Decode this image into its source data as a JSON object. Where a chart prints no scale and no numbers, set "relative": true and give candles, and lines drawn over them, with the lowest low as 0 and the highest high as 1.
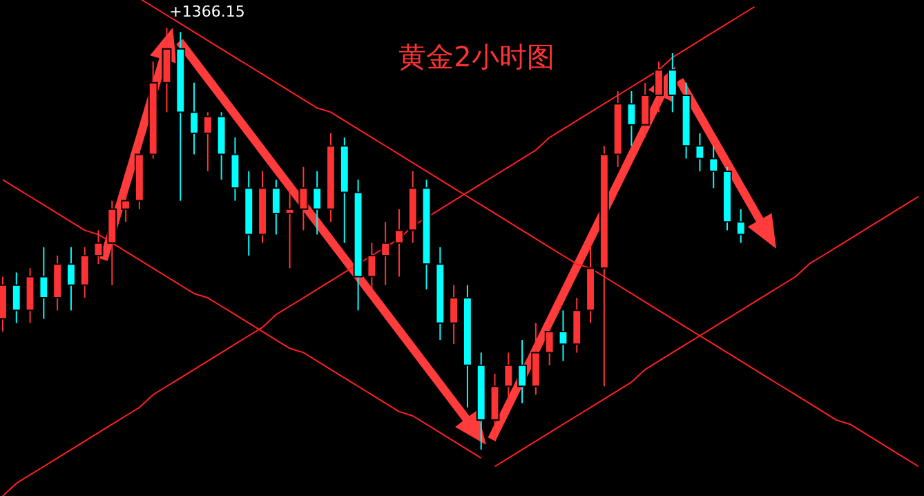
{
  "chart_data": {
    "type": "candlestick",
    "title": "黄金2小时图",
    "relative": true,
    "annotations": [
      "+1366.15"
    ],
    "categories": [
      null,
      null,
      null,
      null,
      null,
      null,
      null,
      null,
      null,
      null,
      null,
      null,
      null,
      null,
      null,
      null,
      null,
      null,
      null,
      null,
      null,
      null,
      null,
      null,
      null,
      null,
      null,
      null,
      null,
      null,
      null,
      null,
      null,
      null,
      null,
      null,
      null,
      null,
      null,
      null,
      null,
      null,
      null,
      null,
      null,
      null,
      null,
      null,
      null,
      null,
      null,
      null,
      null,
      null,
      null,
      null,
      null,
      null,
      null,
      null,
      null,
      null,
      null,
      null,
      null,
      null,
      null,
      null
    ],
    "ohlc": [
      [
        0.31,
        0.41,
        0.28,
        0.39
      ],
      [
        0.39,
        0.42,
        0.3,
        0.33
      ],
      [
        0.33,
        0.43,
        0.3,
        0.41
      ],
      [
        0.41,
        0.48,
        0.31,
        0.36
      ],
      [
        0.36,
        0.46,
        0.33,
        0.44
      ],
      [
        0.44,
        0.48,
        0.33,
        0.39
      ],
      [
        0.39,
        0.48,
        0.36,
        0.46
      ],
      [
        0.46,
        0.52,
        0.44,
        0.49
      ],
      [
        0.49,
        0.59,
        0.39,
        0.57
      ],
      [
        0.57,
        0.62,
        0.54,
        0.59
      ],
      [
        0.59,
        0.74,
        0.57,
        0.7
      ],
      [
        0.7,
        0.92,
        0.69,
        0.87
      ],
      [
        0.87,
        1,
        0.8,
        0.95
      ],
      [
        0.95,
        0.99,
        0.59,
        0.8
      ],
      [
        0.8,
        0.87,
        0.7,
        0.75
      ],
      [
        0.75,
        0.8,
        0.66,
        0.79
      ],
      [
        0.79,
        0.8,
        0.64,
        0.7
      ],
      [
        0.7,
        0.74,
        0.59,
        0.62
      ],
      [
        0.62,
        0.66,
        0.46,
        0.51
      ],
      [
        0.51,
        0.66,
        0.49,
        0.62
      ],
      [
        0.62,
        0.64,
        0.51,
        0.56
      ],
      [
        0.56,
        0.62,
        0.43,
        0.57
      ],
      [
        0.57,
        0.67,
        0.52,
        0.62
      ],
      [
        0.62,
        0.66,
        0.51,
        0.57
      ],
      [
        0.57,
        0.75,
        0.54,
        0.72
      ],
      [
        0.72,
        0.74,
        0.49,
        0.61
      ],
      [
        0.61,
        0.64,
        0.33,
        0.41
      ],
      [
        0.41,
        0.49,
        0.38,
        0.46
      ],
      [
        0.46,
        0.54,
        0.39,
        0.49
      ],
      [
        0.49,
        0.57,
        0.41,
        0.52
      ],
      [
        0.52,
        0.66,
        0.49,
        0.62
      ],
      [
        0.62,
        0.64,
        0.38,
        0.44
      ],
      [
        0.44,
        0.48,
        0.26,
        0.3
      ],
      [
        0.3,
        0.39,
        0.25,
        0.36
      ],
      [
        0.36,
        0.39,
        0.1,
        0.2
      ],
      [
        0.2,
        0.23,
        0,
        0.07
      ],
      [
        0.07,
        0.18,
        0.02,
        0.15
      ],
      [
        0.15,
        0.23,
        0.1,
        0.2
      ],
      [
        0.2,
        0.26,
        0.11,
        0.15
      ],
      [
        0.15,
        0.3,
        0.13,
        0.23
      ],
      [
        0.23,
        0.31,
        0.2,
        0.28
      ],
      [
        0.28,
        0.33,
        0.21,
        0.25
      ],
      [
        0.25,
        0.36,
        0.23,
        0.33
      ],
      [
        0.33,
        0.49,
        0.3,
        0.43
      ],
      [
        0.43,
        0.72,
        0.15,
        0.7
      ],
      [
        0.7,
        0.85,
        0.67,
        0.82
      ],
      [
        0.82,
        0.85,
        0.72,
        0.77
      ],
      [
        0.77,
        0.87,
        0.74,
        0.84
      ],
      [
        0.84,
        0.92,
        0.8,
        0.9
      ],
      [
        0.9,
        0.94,
        0.8,
        0.84
      ],
      [
        0.84,
        0.87,
        0.69,
        0.72
      ],
      [
        0.72,
        0.75,
        0.66,
        0.69
      ],
      [
        0.69,
        0.72,
        0.62,
        0.66
      ],
      [
        0.66,
        0.67,
        0.52,
        0.54
      ],
      [
        0.54,
        0.57,
        0.49,
        0.51
      ],
      null,
      null,
      null,
      null,
      null,
      null,
      null,
      null,
      null,
      null,
      null,
      null,
      null
    ],
    "colors": [
      "#ff3333",
      "#00ffff",
      "#ff3333",
      "#00ffff",
      "#ff3333",
      "#00ffff",
      "#ff3333",
      "#ff3333",
      "#ff3333",
      "#ff3333",
      "#ff3333",
      "#ff3333",
      "#ff3333",
      "#00ffff",
      "#00ffff",
      "#ff3333",
      "#00ffff",
      "#00ffff",
      "#00ffff",
      "#ff3333",
      "#00ffff",
      "#ff3333",
      "#ff3333",
      "#00ffff",
      "#ff3333",
      "#00ffff",
      "#00ffff",
      "#ff3333",
      "#ff3333",
      "#ff3333",
      "#ff3333",
      "#00ffff",
      "#00ffff",
      "#ff3333",
      "#00ffff",
      "#00ffff",
      "#ff3333",
      "#ff3333",
      "#00ffff",
      "#ff3333",
      "#ff3333",
      "#00ffff",
      "#ff3333",
      "#ff3333",
      "#ff3333",
      "#ff3333",
      "#00ffff",
      "#ff3333",
      "#ff3333",
      "#00ffff",
      "#00ffff",
      "#00ffff",
      "#00ffff",
      "#00ffff",
      "#00ffff",
      null,
      null,
      null,
      null,
      null,
      null,
      null,
      null,
      null,
      null,
      null,
      null,
      null
    ],
    "series": [
      {
        "type": "line",
        "color": "#ff2020",
        "values": [
          null,
          null,
          null,
          null,
          null,
          null,
          null,
          null,
          null,
          null,
          1.07,
          1.05,
          1.03,
          1.01,
          0.99,
          0.97,
          0.95,
          0.93,
          0.91,
          0.89,
          0.87,
          0.85,
          0.83,
          0.81,
          0.8,
          0.78,
          0.76,
          0.74,
          0.72,
          0.7,
          0.68,
          0.66,
          0.64,
          0.62,
          0.6,
          0.58,
          0.56,
          0.54,
          0.52,
          0.5,
          0.48,
          0.46,
          0.44,
          0.43,
          0.41,
          0.39,
          0.37,
          0.35,
          0.33,
          0.31,
          0.29,
          0.27,
          0.25,
          0.23,
          0.21,
          0.19,
          0.17,
          0.15,
          0.13,
          0.11,
          0.09,
          0.07,
          0.06,
          0.04,
          0.02,
          0.0,
          -0.02,
          -0.04
        ]
      },
      {
        "type": "line",
        "color": "#ff2020",
        "values": [
          0.64,
          0.62,
          0.6,
          0.58,
          0.56,
          0.54,
          0.52,
          0.51,
          0.49,
          0.47,
          0.45,
          0.43,
          0.41,
          0.39,
          0.37,
          0.36,
          0.34,
          0.32,
          0.3,
          0.28,
          0.26,
          0.24,
          0.23,
          0.21,
          0.19,
          0.17,
          0.15,
          0.13,
          0.11,
          0.09,
          0.08,
          0.06,
          0.04,
          0.02,
          0.0,
          -0.02,
          null,
          null,
          null,
          null,
          null,
          null,
          null,
          null,
          null,
          null,
          null,
          null,
          null,
          null,
          null,
          null,
          null,
          null,
          null,
          null,
          null,
          null,
          null,
          null,
          null,
          null,
          null,
          null,
          null,
          null,
          null,
          null
        ]
      },
      {
        "type": "line",
        "color": "#ff2020",
        "values": [
          -0.11,
          -0.08,
          -0.06,
          -0.04,
          -0.02,
          0.0,
          0.02,
          0.04,
          0.06,
          0.08,
          0.1,
          0.13,
          0.15,
          0.17,
          0.19,
          0.21,
          0.23,
          0.25,
          0.27,
          0.29,
          0.32,
          0.34,
          0.36,
          0.38,
          0.4,
          0.42,
          0.44,
          0.46,
          0.48,
          0.5,
          0.53,
          0.55,
          0.57,
          0.59,
          0.61,
          0.63,
          0.65,
          0.67,
          0.69,
          0.71,
          0.74,
          0.76,
          0.78,
          0.8,
          0.82,
          0.84,
          0.86,
          0.88,
          0.9,
          0.93,
          0.95,
          0.97,
          0.99,
          1.01,
          1.03,
          1.05,
          null,
          null,
          null,
          null,
          null,
          null,
          null,
          null,
          null,
          null,
          null,
          null
        ]
      },
      {
        "type": "line",
        "color": "#ff2020",
        "values": [
          null,
          null,
          null,
          null,
          null,
          null,
          null,
          null,
          null,
          null,
          null,
          null,
          null,
          null,
          null,
          null,
          null,
          null,
          null,
          null,
          null,
          null,
          null,
          null,
          null,
          null,
          null,
          null,
          null,
          null,
          null,
          null,
          null,
          null,
          null,
          null,
          -0.04,
          -0.02,
          0.0,
          0.02,
          0.04,
          0.06,
          0.08,
          0.1,
          0.12,
          0.14,
          0.16,
          0.19,
          0.21,
          0.23,
          0.25,
          0.27,
          0.29,
          0.31,
          0.33,
          0.35,
          0.37,
          0.39,
          0.41,
          0.44,
          0.46,
          0.48,
          0.5,
          0.52,
          0.54,
          0.56,
          0.58,
          0.6
        ]
      }
    ]
  }
}
